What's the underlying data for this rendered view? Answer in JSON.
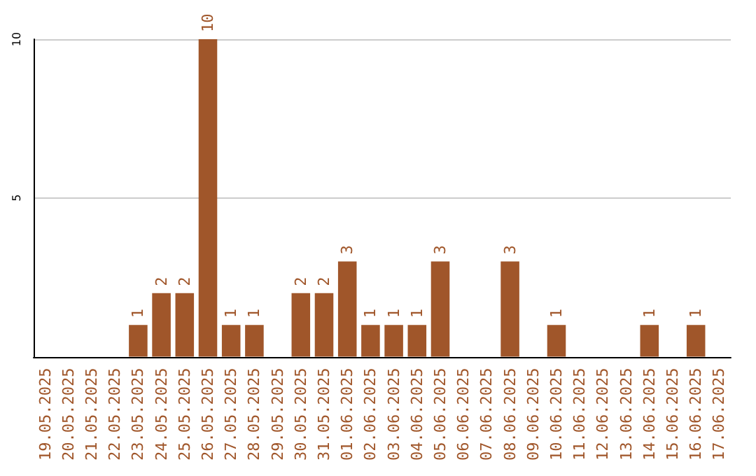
{
  "chart_data": {
    "type": "bar",
    "categories": [
      "19.05.2025",
      "20.05.2025",
      "21.05.2025",
      "22.05.2025",
      "23.05.2025",
      "24.05.2025",
      "25.05.2025",
      "26.05.2025",
      "27.05.2025",
      "28.05.2025",
      "29.05.2025",
      "30.05.2025",
      "31.05.2025",
      "01.06.2025",
      "02.06.2025",
      "03.06.2025",
      "04.06.2025",
      "05.06.2025",
      "06.06.2025",
      "07.06.2025",
      "08.06.2025",
      "09.06.2025",
      "10.06.2025",
      "11.06.2025",
      "12.06.2025",
      "13.06.2025",
      "14.06.2025",
      "15.06.2025",
      "16.06.2025",
      "17.06.2025"
    ],
    "values": [
      0,
      0,
      0,
      0,
      1,
      2,
      2,
      10,
      1,
      1,
      0,
      2,
      2,
      3,
      1,
      1,
      1,
      3,
      0,
      0,
      3,
      0,
      1,
      0,
      0,
      0,
      1,
      0,
      1,
      0
    ],
    "value_labels": [
      null,
      null,
      null,
      null,
      "1",
      "2",
      "2",
      "10",
      "1",
      "1",
      null,
      "2",
      "2",
      "3",
      "1",
      "1",
      "1",
      "3",
      null,
      null,
      "3",
      null,
      "1",
      null,
      null,
      null,
      "1",
      null,
      "1",
      null
    ],
    "color": "#a0562a",
    "ylim": [
      0,
      10
    ],
    "yticks": [
      {
        "value": 0,
        "label": null
      },
      5,
      10
    ],
    "grid": "y"
  }
}
